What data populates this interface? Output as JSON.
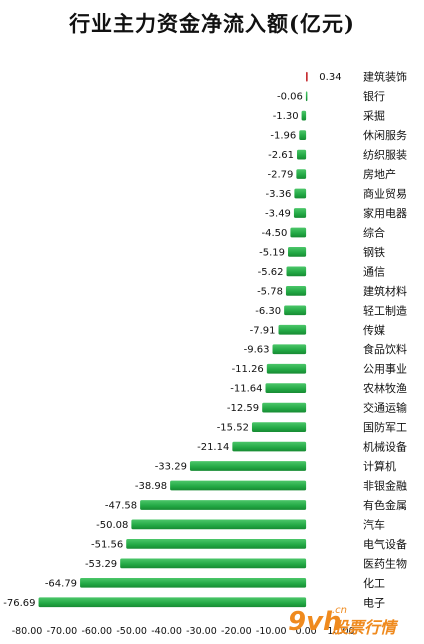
{
  "chart_data": {
    "type": "bar",
    "orientation": "horizontal",
    "title": "行业主力资金净流入额(亿元)",
    "categories": [
      "建筑装饰",
      "银行",
      "采掘",
      "休闲服务",
      "纺织服装",
      "房地产",
      "商业贸易",
      "家用电器",
      "综合",
      "钢铁",
      "通信",
      "建筑材料",
      "轻工制造",
      "传媒",
      "食品饮料",
      "公用事业",
      "农林牧渔",
      "交通运输",
      "国防军工",
      "机械设备",
      "计算机",
      "非银金融",
      "有色金属",
      "汽车",
      "电气设备",
      "医药生物",
      "化工",
      "电子"
    ],
    "values": [
      0.34,
      -0.06,
      -1.3,
      -1.96,
      -2.61,
      -2.79,
      -3.36,
      -3.49,
      -4.5,
      -5.19,
      -5.62,
      -5.78,
      -6.3,
      -7.91,
      -9.63,
      -11.26,
      -11.64,
      -12.59,
      -15.52,
      -21.14,
      -33.29,
      -38.98,
      -47.58,
      -50.08,
      -51.56,
      -53.29,
      -64.79,
      -76.69
    ],
    "value_labels": [
      "0.34",
      "-0.06",
      "-1.30",
      "-1.96",
      "-2.61",
      "-2.79",
      "-3.36",
      "-3.49",
      "-4.50",
      "-5.19",
      "-5.62",
      "-5.78",
      "-6.30",
      "-7.91",
      "-9.63",
      "-11.26",
      "-11.64",
      "-12.59",
      "-15.52",
      "-21.14",
      "-33.29",
      "-38.98",
      "-47.58",
      "-50.08",
      "-51.56",
      "-53.29",
      "-64.79",
      "-76.69"
    ],
    "xlim": [
      -80,
      10
    ],
    "x_ticks": [
      "-80.00",
      "-70.00",
      "-60.00",
      "-50.00",
      "-40.00",
      "-30.00",
      "-20.00",
      "-10.00",
      "0.00",
      "10.00"
    ],
    "x_tick_values": [
      -80,
      -70,
      -60,
      -50,
      -40,
      -30,
      -20,
      -10,
      0,
      10
    ],
    "grid": false,
    "legend": "none",
    "colors": {
      "positive": "#c0141a",
      "negative": "#22a844",
      "negative_light": "#4cc76a",
      "negative_dark": "#178a33"
    }
  },
  "watermark": {
    "brand": "9vh",
    "domain_suffix": ".cn",
    "text": "股票行情"
  }
}
